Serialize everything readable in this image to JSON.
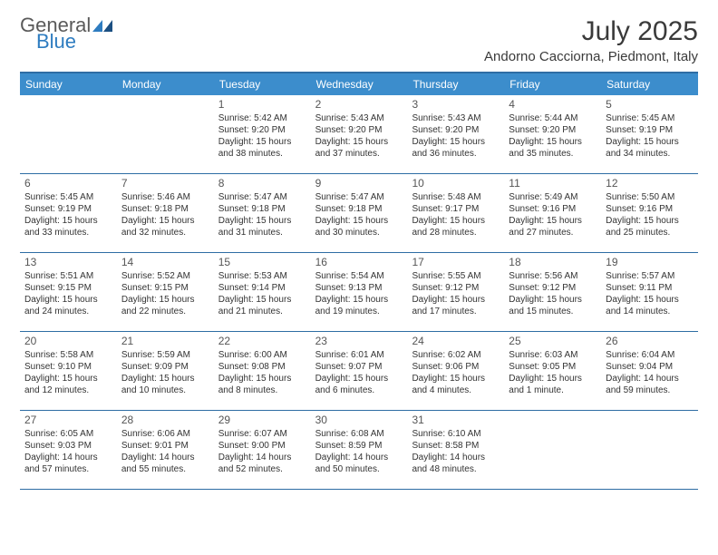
{
  "logo": {
    "word1": "General",
    "word2": "Blue"
  },
  "title": "July 2025",
  "location": "Andorno Cacciorna, Piedmont, Italy",
  "header_bg": "#3c8dcc",
  "border_color": "#2e6da4",
  "days": [
    "Sunday",
    "Monday",
    "Tuesday",
    "Wednesday",
    "Thursday",
    "Friday",
    "Saturday"
  ],
  "weeks": [
    [
      {
        "n": "",
        "sr": "",
        "ss": "",
        "dl": "",
        "empty": true
      },
      {
        "n": "",
        "sr": "",
        "ss": "",
        "dl": "",
        "empty": true
      },
      {
        "n": "1",
        "sr": "Sunrise: 5:42 AM",
        "ss": "Sunset: 9:20 PM",
        "dl": "Daylight: 15 hours and 38 minutes."
      },
      {
        "n": "2",
        "sr": "Sunrise: 5:43 AM",
        "ss": "Sunset: 9:20 PM",
        "dl": "Daylight: 15 hours and 37 minutes."
      },
      {
        "n": "3",
        "sr": "Sunrise: 5:43 AM",
        "ss": "Sunset: 9:20 PM",
        "dl": "Daylight: 15 hours and 36 minutes."
      },
      {
        "n": "4",
        "sr": "Sunrise: 5:44 AM",
        "ss": "Sunset: 9:20 PM",
        "dl": "Daylight: 15 hours and 35 minutes."
      },
      {
        "n": "5",
        "sr": "Sunrise: 5:45 AM",
        "ss": "Sunset: 9:19 PM",
        "dl": "Daylight: 15 hours and 34 minutes."
      }
    ],
    [
      {
        "n": "6",
        "sr": "Sunrise: 5:45 AM",
        "ss": "Sunset: 9:19 PM",
        "dl": "Daylight: 15 hours and 33 minutes."
      },
      {
        "n": "7",
        "sr": "Sunrise: 5:46 AM",
        "ss": "Sunset: 9:18 PM",
        "dl": "Daylight: 15 hours and 32 minutes."
      },
      {
        "n": "8",
        "sr": "Sunrise: 5:47 AM",
        "ss": "Sunset: 9:18 PM",
        "dl": "Daylight: 15 hours and 31 minutes."
      },
      {
        "n": "9",
        "sr": "Sunrise: 5:47 AM",
        "ss": "Sunset: 9:18 PM",
        "dl": "Daylight: 15 hours and 30 minutes."
      },
      {
        "n": "10",
        "sr": "Sunrise: 5:48 AM",
        "ss": "Sunset: 9:17 PM",
        "dl": "Daylight: 15 hours and 28 minutes."
      },
      {
        "n": "11",
        "sr": "Sunrise: 5:49 AM",
        "ss": "Sunset: 9:16 PM",
        "dl": "Daylight: 15 hours and 27 minutes."
      },
      {
        "n": "12",
        "sr": "Sunrise: 5:50 AM",
        "ss": "Sunset: 9:16 PM",
        "dl": "Daylight: 15 hours and 25 minutes."
      }
    ],
    [
      {
        "n": "13",
        "sr": "Sunrise: 5:51 AM",
        "ss": "Sunset: 9:15 PM",
        "dl": "Daylight: 15 hours and 24 minutes."
      },
      {
        "n": "14",
        "sr": "Sunrise: 5:52 AM",
        "ss": "Sunset: 9:15 PM",
        "dl": "Daylight: 15 hours and 22 minutes."
      },
      {
        "n": "15",
        "sr": "Sunrise: 5:53 AM",
        "ss": "Sunset: 9:14 PM",
        "dl": "Daylight: 15 hours and 21 minutes."
      },
      {
        "n": "16",
        "sr": "Sunrise: 5:54 AM",
        "ss": "Sunset: 9:13 PM",
        "dl": "Daylight: 15 hours and 19 minutes."
      },
      {
        "n": "17",
        "sr": "Sunrise: 5:55 AM",
        "ss": "Sunset: 9:12 PM",
        "dl": "Daylight: 15 hours and 17 minutes."
      },
      {
        "n": "18",
        "sr": "Sunrise: 5:56 AM",
        "ss": "Sunset: 9:12 PM",
        "dl": "Daylight: 15 hours and 15 minutes."
      },
      {
        "n": "19",
        "sr": "Sunrise: 5:57 AM",
        "ss": "Sunset: 9:11 PM",
        "dl": "Daylight: 15 hours and 14 minutes."
      }
    ],
    [
      {
        "n": "20",
        "sr": "Sunrise: 5:58 AM",
        "ss": "Sunset: 9:10 PM",
        "dl": "Daylight: 15 hours and 12 minutes."
      },
      {
        "n": "21",
        "sr": "Sunrise: 5:59 AM",
        "ss": "Sunset: 9:09 PM",
        "dl": "Daylight: 15 hours and 10 minutes."
      },
      {
        "n": "22",
        "sr": "Sunrise: 6:00 AM",
        "ss": "Sunset: 9:08 PM",
        "dl": "Daylight: 15 hours and 8 minutes."
      },
      {
        "n": "23",
        "sr": "Sunrise: 6:01 AM",
        "ss": "Sunset: 9:07 PM",
        "dl": "Daylight: 15 hours and 6 minutes."
      },
      {
        "n": "24",
        "sr": "Sunrise: 6:02 AM",
        "ss": "Sunset: 9:06 PM",
        "dl": "Daylight: 15 hours and 4 minutes."
      },
      {
        "n": "25",
        "sr": "Sunrise: 6:03 AM",
        "ss": "Sunset: 9:05 PM",
        "dl": "Daylight: 15 hours and 1 minute."
      },
      {
        "n": "26",
        "sr": "Sunrise: 6:04 AM",
        "ss": "Sunset: 9:04 PM",
        "dl": "Daylight: 14 hours and 59 minutes."
      }
    ],
    [
      {
        "n": "27",
        "sr": "Sunrise: 6:05 AM",
        "ss": "Sunset: 9:03 PM",
        "dl": "Daylight: 14 hours and 57 minutes."
      },
      {
        "n": "28",
        "sr": "Sunrise: 6:06 AM",
        "ss": "Sunset: 9:01 PM",
        "dl": "Daylight: 14 hours and 55 minutes."
      },
      {
        "n": "29",
        "sr": "Sunrise: 6:07 AM",
        "ss": "Sunset: 9:00 PM",
        "dl": "Daylight: 14 hours and 52 minutes."
      },
      {
        "n": "30",
        "sr": "Sunrise: 6:08 AM",
        "ss": "Sunset: 8:59 PM",
        "dl": "Daylight: 14 hours and 50 minutes."
      },
      {
        "n": "31",
        "sr": "Sunrise: 6:10 AM",
        "ss": "Sunset: 8:58 PM",
        "dl": "Daylight: 14 hours and 48 minutes."
      },
      {
        "n": "",
        "sr": "",
        "ss": "",
        "dl": "",
        "empty": true
      },
      {
        "n": "",
        "sr": "",
        "ss": "",
        "dl": "",
        "empty": true
      }
    ]
  ]
}
